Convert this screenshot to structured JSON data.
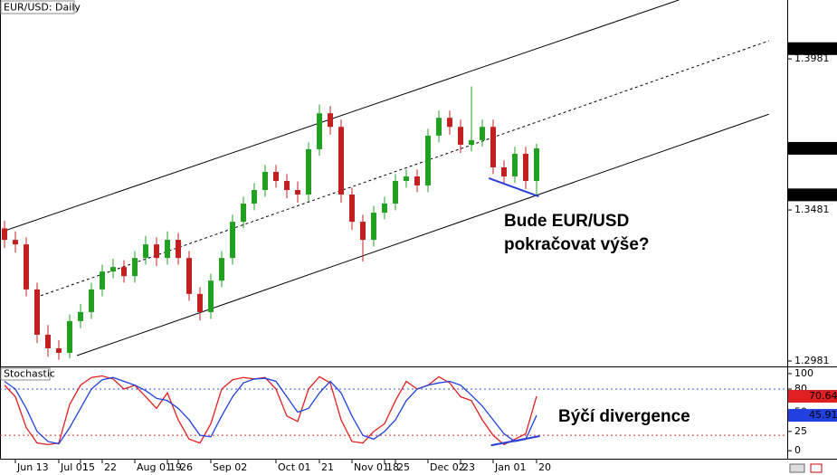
{
  "chart_data": [
    {
      "type": "candlestick",
      "title": "EUR/USD: Daily",
      "open": [
        1.342,
        1.3382,
        1.3367,
        1.3218,
        1.3068,
        1.3023,
        1.3008,
        1.3113,
        1.3143,
        1.3218,
        1.3277,
        1.3292,
        1.3262,
        1.3322,
        1.3367,
        1.3322,
        1.3382,
        1.3322,
        1.3203,
        1.3143,
        1.3247,
        1.3322,
        1.3442,
        1.3502,
        1.3547,
        1.3607,
        1.3577,
        1.3547,
        1.3532,
        1.3682,
        1.3801,
        1.3756,
        1.3532,
        1.3442,
        1.3382,
        1.3472,
        1.3502,
        1.3577,
        1.3592,
        1.3562,
        1.3727,
        1.3786,
        1.3756,
        1.3697,
        1.3712,
        1.3756,
        1.3622,
        1.3592,
        1.3667,
        1.3577
      ],
      "high": [
        1.3445,
        1.341,
        1.339,
        1.324,
        1.31,
        1.305,
        1.3135,
        1.317,
        1.324,
        1.33,
        1.332,
        1.3315,
        1.3345,
        1.3395,
        1.339,
        1.341,
        1.3405,
        1.3345,
        1.3225,
        1.327,
        1.3345,
        1.3465,
        1.3525,
        1.357,
        1.363,
        1.363,
        1.36,
        1.3575,
        1.3705,
        1.383,
        1.3825,
        1.378,
        1.3555,
        1.3465,
        1.3495,
        1.3525,
        1.36,
        1.3615,
        1.3615,
        1.375,
        1.381,
        1.381,
        1.378,
        1.389,
        1.378,
        1.378,
        1.3645,
        1.369,
        1.369,
        1.37
      ],
      "low": [
        1.3355,
        1.334,
        1.3195,
        1.304,
        1.2995,
        1.2985,
        1.299,
        1.309,
        1.312,
        1.3195,
        1.3255,
        1.324,
        1.324,
        1.33,
        1.3295,
        1.33,
        1.33,
        1.318,
        1.3115,
        1.312,
        1.3225,
        1.33,
        1.342,
        1.348,
        1.3525,
        1.3555,
        1.352,
        1.3505,
        1.351,
        1.366,
        1.373,
        1.3505,
        1.3415,
        1.331,
        1.336,
        1.345,
        1.348,
        1.3555,
        1.354,
        1.354,
        1.3705,
        1.373,
        1.367,
        1.3675,
        1.369,
        1.36,
        1.357,
        1.357,
        1.355,
        1.3531
      ],
      "close": [
        1.3382,
        1.3367,
        1.3218,
        1.3068,
        1.3023,
        1.3008,
        1.3113,
        1.3143,
        1.3218,
        1.3277,
        1.3292,
        1.3262,
        1.3322,
        1.3367,
        1.3322,
        1.3382,
        1.3322,
        1.3203,
        1.3143,
        1.3247,
        1.3322,
        1.3442,
        1.3502,
        1.3547,
        1.3607,
        1.3577,
        1.3547,
        1.3532,
        1.3682,
        1.3801,
        1.3756,
        1.3532,
        1.3442,
        1.3382,
        1.3472,
        1.3502,
        1.3577,
        1.3592,
        1.3562,
        1.3727,
        1.3786,
        1.3756,
        1.3697,
        1.3712,
        1.3756,
        1.3622,
        1.3592,
        1.3667,
        1.3577,
        1.3685
      ],
      "up_color": "#22a022",
      "down_color": "#c02020",
      "ylim": [
        1.2963,
        1.4176
      ],
      "yticks": [
        1.2981,
        1.3481,
        1.3981
      ],
      "marked_levels": [
        1.4015,
        1.3531
      ],
      "channel": [
        {
          "x": [
            0,
            62.1
          ],
          "y": [
            1.3412,
            1.4176
          ],
          "dashed": false
        },
        {
          "x": [
            3.33,
            70.4
          ],
          "y": [
            1.3197,
            1.4041
          ],
          "dashed": true
        },
        {
          "x": [
            6.67,
            70.4
          ],
          "y": [
            1.2999,
            1.3798
          ],
          "dashed": false
        }
      ],
      "divergence": {
        "x": [
          44.6,
          49.2
        ],
        "y": [
          1.3586,
          1.3526
        ],
        "color": "#2a3fd8"
      },
      "annotation": [
        "Bude EUR/USD",
        "pokračovat výše?"
      ]
    },
    {
      "type": "line",
      "title": "Stochastic",
      "categories": [
        null,
        "Jun 13",
        null,
        null,
        null,
        "Jul 01",
        null,
        "15",
        null,
        "22",
        null,
        null,
        "Aug 01",
        null,
        null,
        "19",
        "26",
        null,
        null,
        "Sep 02",
        null,
        null,
        null,
        null,
        null,
        "Oct 01",
        null,
        null,
        null,
        "21",
        null,
        null,
        "Nov 01",
        null,
        null,
        "18",
        "25",
        null,
        null,
        "Dec 02",
        null,
        null,
        "23",
        null,
        null,
        "Jan 01",
        null,
        null,
        null,
        "20"
      ],
      "series": [
        {
          "color": "#e02020",
          "values": [
            85,
            70,
            30,
            10,
            8,
            10,
            60,
            85,
            95,
            97,
            93,
            80,
            85,
            70,
            55,
            75,
            40,
            15,
            10,
            35,
            80,
            92,
            95,
            93,
            95,
            80,
            45,
            38,
            80,
            96,
            88,
            40,
            12,
            10,
            25,
            35,
            65,
            90,
            80,
            85,
            96,
            88,
            70,
            65,
            40,
            20,
            8,
            15,
            22,
            70.64
          ]
        },
        {
          "color": "#2040e0",
          "values": [
            90,
            80,
            55,
            25,
            12,
            9,
            30,
            55,
            80,
            92,
            95,
            90,
            85,
            78,
            68,
            65,
            55,
            40,
            20,
            18,
            45,
            70,
            88,
            93,
            94,
            90,
            70,
            50,
            55,
            75,
            90,
            75,
            45,
            20,
            15,
            25,
            40,
            65,
            80,
            85,
            88,
            90,
            85,
            72,
            58,
            40,
            22,
            12,
            15,
            45.91
          ]
        }
      ],
      "ylim": [
        -8,
        107
      ],
      "yticks": [
        0,
        25,
        50,
        80,
        100
      ],
      "levels": [
        {
          "value": 80,
          "color": "#3050d0"
        },
        {
          "value": 20,
          "color": "#d03030"
        }
      ],
      "divergence": {
        "x": [
          44.8,
          49.3
        ],
        "y": [
          7,
          19
        ],
        "color": "#2a3fd8"
      },
      "annotation": "Býčí divergence"
    }
  ]
}
